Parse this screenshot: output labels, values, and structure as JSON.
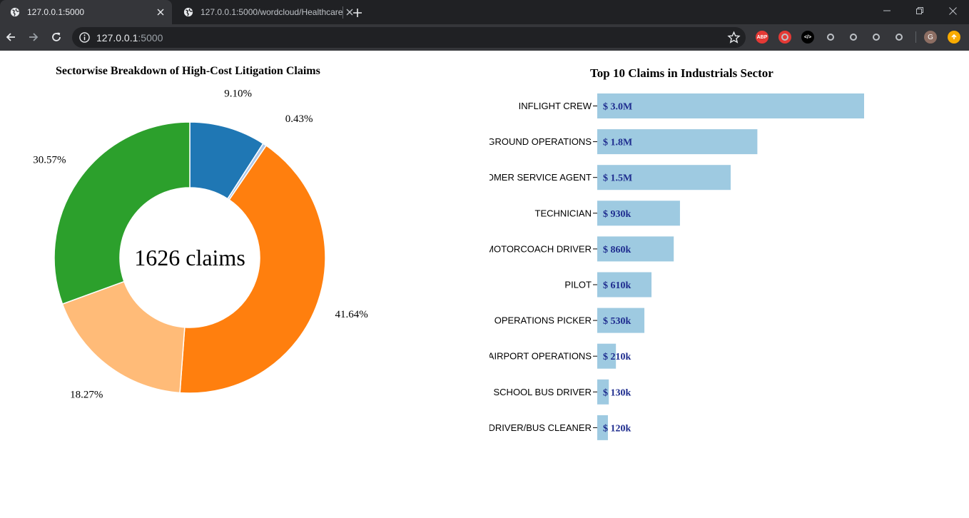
{
  "browser": {
    "tabs": [
      {
        "title": "127.0.0.1:5000",
        "active": true
      },
      {
        "title": "127.0.0.1:5000/wordcloud/Healthcare",
        "active": false
      }
    ],
    "url_host": "127.0.0.1",
    "url_port": ":5000",
    "extensions": [
      {
        "name": "adblock-icon",
        "label": "ABP",
        "color": "#e53935"
      },
      {
        "name": "color-picker-icon",
        "label": "",
        "color": "#e53935"
      },
      {
        "name": "devtools-icon",
        "label": "</>",
        "color": "#000000"
      },
      {
        "name": "clover-icon",
        "label": "",
        "color": "#35363a"
      },
      {
        "name": "mcafee-icon",
        "label": "",
        "color": "#35363a"
      },
      {
        "name": "record-icon",
        "label": "",
        "color": "#35363a"
      },
      {
        "name": "medical-cross-icon",
        "label": "",
        "color": "#35363a"
      }
    ],
    "profile_initial": "G"
  },
  "chart_data": [
    {
      "type": "pie",
      "title": "Sectorwise Breakdown of High-Cost Litigation Claims",
      "center_label": "1626 claims",
      "slices": [
        {
          "label": "9.10%",
          "value": 9.1,
          "color": "#1f77b4"
        },
        {
          "label": "0.43%",
          "value": 0.43,
          "color": "#aec7e8"
        },
        {
          "label": "41.64%",
          "value": 41.64,
          "color": "#ff7f0e"
        },
        {
          "label": "18.27%",
          "value": 18.27,
          "color": "#ffbb78"
        },
        {
          "label": "30.57%",
          "value": 30.57,
          "color": "#2ca02c"
        }
      ]
    },
    {
      "type": "bar",
      "orientation": "horizontal",
      "title": "Top 10 Claims in Industrials Sector",
      "categories": [
        "INFLIGHT CREW",
        "GROUND OPERATIONS",
        "OMER SERVICE AGENT",
        "TECHNICIAN",
        "MOTORCOACH DRIVER",
        "PILOT",
        "OPERATIONS PICKER",
        "AIRPORT OPERATIONS",
        "SCHOOL BUS DRIVER",
        "DRIVER/BUS CLEANER"
      ],
      "values": [
        3000000,
        1800000,
        1500000,
        930000,
        860000,
        610000,
        530000,
        210000,
        130000,
        120000
      ],
      "value_labels": [
        "$ 3.0M",
        "$ 1.8M",
        "$ 1.5M",
        "$ 930k",
        "$ 860k",
        "$ 610k",
        "$ 530k",
        "$ 210k",
        "$ 130k",
        "$ 120k"
      ],
      "bar_color": "#9ecae1",
      "label_color": "#1f2d8f",
      "xlim": [
        0,
        3000000
      ]
    }
  ]
}
